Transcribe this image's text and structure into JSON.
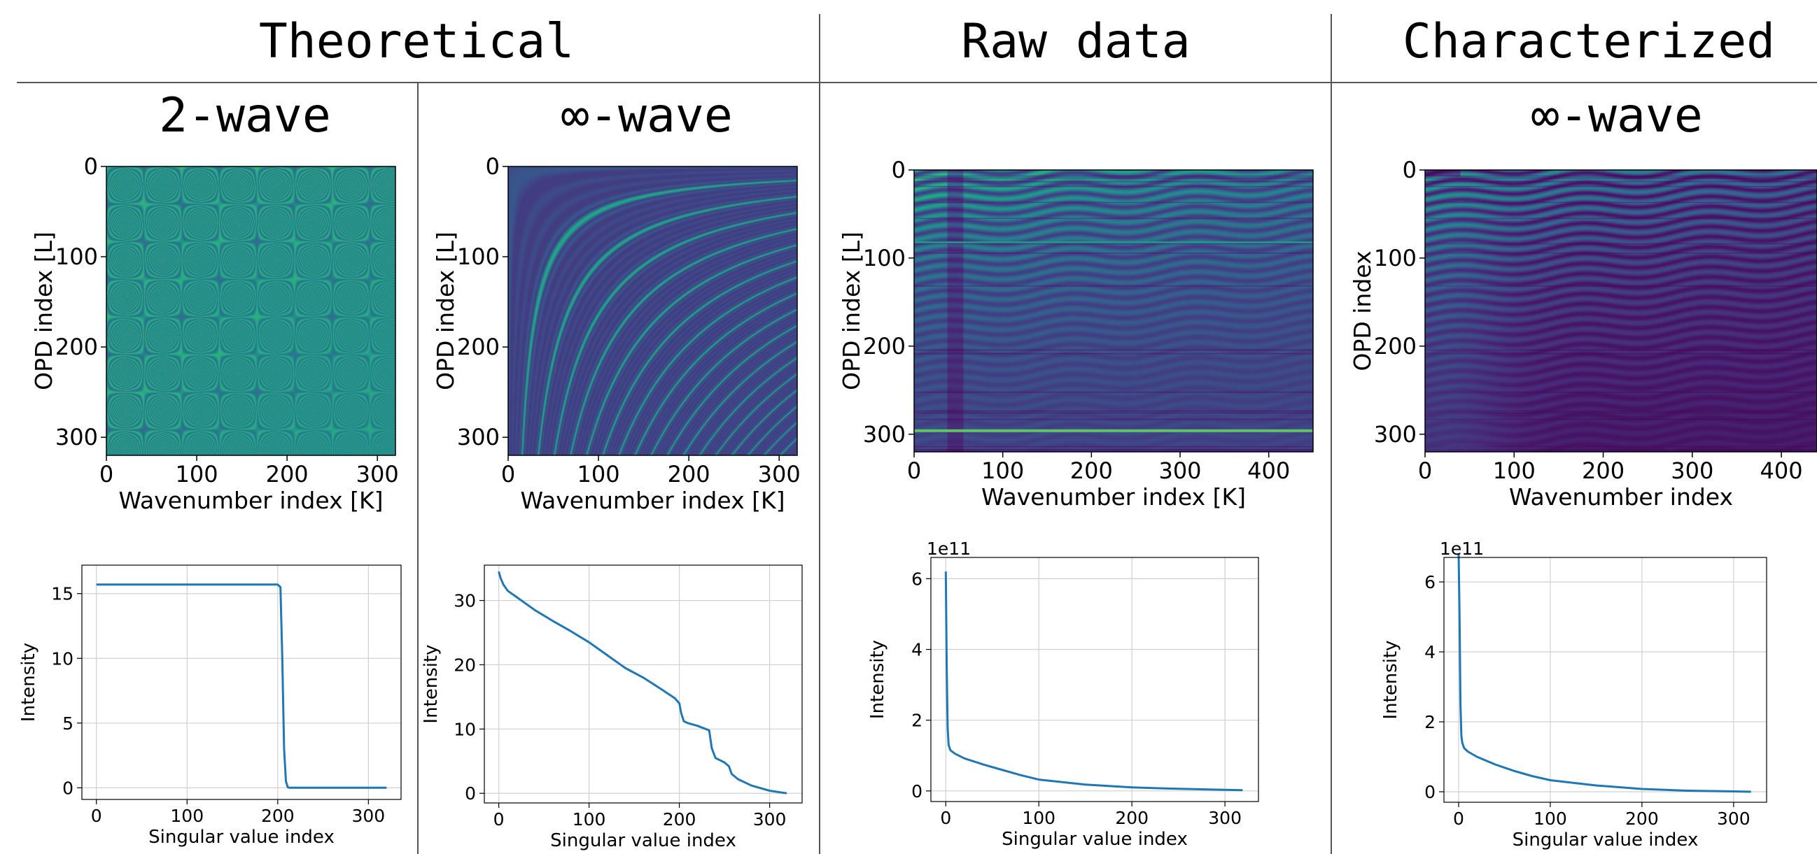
{
  "headers": {
    "theoretical": "Theoretical",
    "raw": "Raw data",
    "characterized": "Characterized"
  },
  "subtitles": [
    "2-wave",
    "∞-wave",
    "",
    "∞-wave"
  ],
  "colors": {
    "line": "#1f77b4",
    "grid": "#d0d0d0",
    "divider": "#555555"
  },
  "chart_data": [
    {
      "type": "heatmap",
      "panel": "p1-top",
      "title": "2-wave",
      "xlabel": "Wavenumber index [K]",
      "ylabel": "OPD index [L]",
      "xticks": [
        0,
        100,
        200,
        300
      ],
      "yticks": [
        0,
        100,
        200,
        300
      ],
      "xlim": [
        0,
        320
      ],
      "ylim": [
        320,
        0
      ],
      "colormap": "viridis",
      "pattern": "two-wave"
    },
    {
      "type": "heatmap",
      "panel": "p2-top",
      "title": "∞-wave",
      "xlabel": "Wavenumber index [K]",
      "ylabel": "OPD index [L]",
      "xticks": [
        0,
        100,
        200,
        300
      ],
      "yticks": [
        0,
        100,
        200,
        300
      ],
      "xlim": [
        0,
        320
      ],
      "ylim": [
        320,
        0
      ],
      "colormap": "viridis",
      "pattern": "inf-wave"
    },
    {
      "type": "heatmap",
      "panel": "p3-top",
      "xlabel": "Wavenumber index [K]",
      "ylabel": "OPD index [L]",
      "xticks": [
        0,
        100,
        200,
        300,
        400
      ],
      "yticks": [
        0,
        100,
        200,
        300
      ],
      "xlim": [
        0,
        450
      ],
      "ylim": [
        320,
        0
      ],
      "colormap": "viridis",
      "pattern": "raw"
    },
    {
      "type": "heatmap",
      "panel": "p4-top",
      "title": "∞-wave",
      "xlabel": "Wavenumber index",
      "ylabel": "OPD index",
      "xticks": [
        0,
        100,
        200,
        300,
        400
      ],
      "yticks": [
        0,
        100,
        200,
        300
      ],
      "xlim": [
        0,
        440
      ],
      "ylim": [
        320,
        0
      ],
      "colormap": "viridis",
      "pattern": "characterized"
    },
    {
      "type": "line",
      "panel": "p1-bottom",
      "xlabel": "Singular value index",
      "ylabel": "Intensity",
      "xlim": [
        -16,
        336
      ],
      "ylim": [
        -0.9,
        17.2
      ],
      "xticks": [
        0,
        100,
        200,
        300
      ],
      "yticks": [
        0,
        5,
        10,
        15
      ],
      "grid": true,
      "x": [
        0,
        100,
        200,
        203,
        205,
        207,
        209,
        211,
        213,
        220,
        320
      ],
      "y": [
        15.7,
        15.7,
        15.7,
        15.5,
        10,
        3,
        0.5,
        0.05,
        0,
        0,
        0
      ]
    },
    {
      "type": "line",
      "panel": "p2-bottom",
      "xlabel": "Singular value index",
      "ylabel": "Intensity",
      "xlim": [
        -16,
        336
      ],
      "ylim": [
        -1.5,
        35.5
      ],
      "xticks": [
        0,
        100,
        200,
        300
      ],
      "yticks": [
        0,
        10,
        20,
        30
      ],
      "grid": true,
      "x": [
        0,
        2,
        5,
        10,
        20,
        40,
        60,
        80,
        100,
        120,
        140,
        160,
        180,
        195,
        200,
        202,
        205,
        210,
        220,
        233,
        236,
        240,
        250,
        255,
        258,
        265,
        280,
        300,
        319
      ],
      "y": [
        34.5,
        33.5,
        32.5,
        31.5,
        30.5,
        28.5,
        26.8,
        25.2,
        23.5,
        21.5,
        19.5,
        18,
        16.2,
        14.8,
        14,
        12.5,
        11.2,
        10.9,
        10.5,
        9.8,
        7,
        5.5,
        4.8,
        4.2,
        3,
        2.2,
        1.2,
        0.4,
        0
      ]
    },
    {
      "type": "line",
      "panel": "p3-bottom",
      "xlabel": "Singular value index",
      "ylabel": "Intensity",
      "offset_text": "1e11",
      "xlim": [
        -16,
        336
      ],
      "ylim": [
        -0.3,
        6.6
      ],
      "xticks": [
        0,
        100,
        200,
        300
      ],
      "yticks": [
        0,
        2,
        4,
        6
      ],
      "grid": true,
      "x": [
        0,
        1,
        2,
        3,
        5,
        10,
        20,
        40,
        60,
        80,
        100,
        150,
        200,
        250,
        300,
        319
      ],
      "y": [
        6.2,
        3.5,
        1.8,
        1.3,
        1.15,
        1.05,
        0.92,
        0.75,
        0.6,
        0.45,
        0.32,
        0.18,
        0.1,
        0.06,
        0.03,
        0.02
      ]
    },
    {
      "type": "line",
      "panel": "p4-bottom",
      "xlabel": "Singular value index",
      "ylabel": "Intensity",
      "offset_text": "1e11",
      "xlim": [
        -16,
        336
      ],
      "ylim": [
        -0.3,
        6.7
      ],
      "xticks": [
        0,
        100,
        200,
        300
      ],
      "yticks": [
        0,
        2,
        4,
        6
      ],
      "grid": true,
      "x": [
        0,
        1,
        2,
        3,
        4,
        6,
        10,
        20,
        40,
        60,
        80,
        100,
        150,
        200,
        250,
        300,
        319
      ],
      "y": [
        6.8,
        5,
        2.5,
        1.6,
        1.4,
        1.25,
        1.15,
        1.0,
        0.78,
        0.6,
        0.45,
        0.33,
        0.18,
        0.08,
        0.03,
        0.01,
        0
      ]
    }
  ]
}
